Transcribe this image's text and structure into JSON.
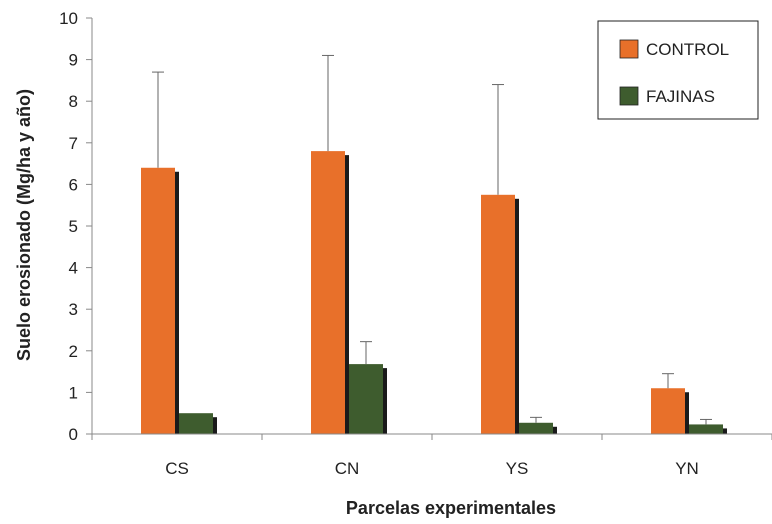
{
  "chart_data": {
    "type": "bar",
    "title": "",
    "xlabel": "Parcelas experimentales",
    "ylabel": "Suelo erosionado (Mg/ha y año)",
    "categories": [
      "CS",
      "CN",
      "YS",
      "YN"
    ],
    "ylim": [
      0,
      10
    ],
    "yticks": [
      0,
      1,
      2,
      3,
      4,
      5,
      6,
      7,
      8,
      9,
      10
    ],
    "grid": false,
    "legend_position": "top-right",
    "series": [
      {
        "name": "CONTROL",
        "color": "#E8702A",
        "values": [
          6.4,
          6.8,
          5.75,
          1.1
        ],
        "error_upper": [
          8.7,
          9.1,
          8.4,
          1.45
        ]
      },
      {
        "name": "FAJINAS",
        "color": "#3E5C2E",
        "values": [
          0.5,
          1.68,
          0.27,
          0.23
        ],
        "error_upper": [
          0.5,
          2.22,
          0.4,
          0.35
        ]
      }
    ]
  }
}
